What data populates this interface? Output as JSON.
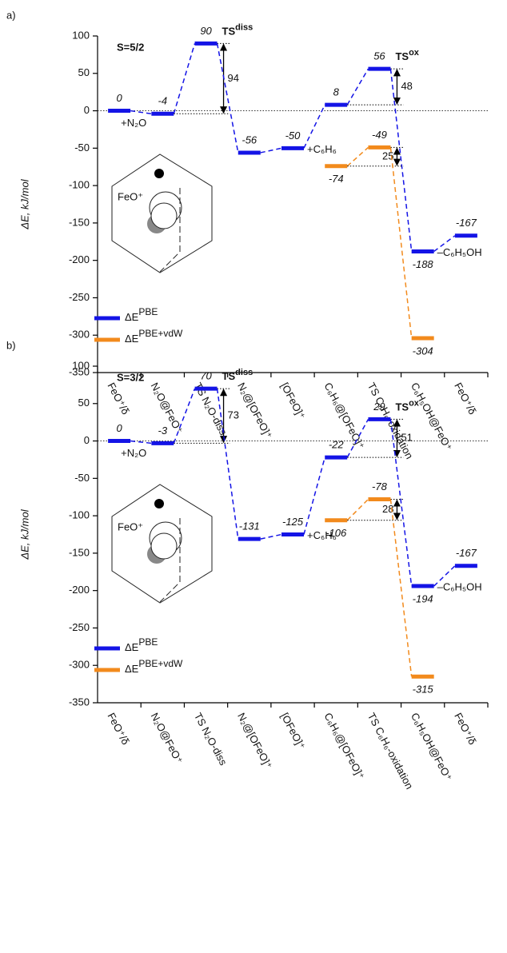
{
  "chart_data": [
    {
      "type": "level",
      "panel": "a)",
      "spin": "S=5/2",
      "ylabel": "ΔE, kJ/mol",
      "inset_label": "FeO⁺",
      "categories": [
        "FeO⁺/δ",
        "N₂O@FeO⁺",
        "TS N₂O-diss",
        "N₂@[OFeO]⁺",
        "[OFeO]⁺",
        "C₆H₆@[OFeO]⁺",
        "TS C₆H₆-oxidation",
        "C₆H₅OH@FeO⁺",
        "FeO⁺/δ"
      ],
      "ylim": [
        -350,
        100
      ],
      "yticks": [
        -350,
        -300,
        -250,
        -200,
        -150,
        -100,
        -50,
        0,
        50,
        100
      ],
      "legend": "lower left",
      "notes": [
        "+N₂O",
        null,
        null,
        null,
        "+C₆H₆",
        null,
        null,
        "–C₆H₅OH",
        null
      ],
      "ts_labels": [
        null,
        null,
        {
          "text": "TS",
          "sup": "diss"
        },
        null,
        null,
        null,
        {
          "text": "TS",
          "sup": "ox"
        },
        null,
        null
      ],
      "series": [
        {
          "name": "ΔE",
          "sup": "PBE",
          "color": "#1414e6",
          "values": [
            0,
            -4,
            90,
            -56,
            -50,
            8,
            56,
            -188,
            -167
          ],
          "barriers": [
            null,
            null,
            94,
            null,
            null,
            null,
            48,
            null,
            null
          ]
        },
        {
          "name": "ΔE",
          "sup": "PBE+vdW",
          "color": "#f28a1c",
          "values": [
            null,
            null,
            null,
            null,
            null,
            -74,
            -49,
            -304,
            null
          ],
          "barriers": [
            null,
            null,
            null,
            null,
            null,
            null,
            25,
            null,
            null
          ]
        }
      ]
    },
    {
      "type": "level",
      "panel": "b)",
      "spin": "S=3/2",
      "ylabel": "ΔE, kJ/mol",
      "inset_label": "FeO⁺",
      "categories": [
        "FeO⁺/δ",
        "N₂O@FeO⁺",
        "TS N₂O-diss",
        "N₂@[OFeO]⁺",
        "[OFeO]⁺",
        "C₆H₆@[OFeO]⁺",
        "TS C₆H₆-oxidation",
        "C₆H₅OH@FeO⁺",
        "FeO⁺/δ"
      ],
      "ylim": [
        -350,
        100
      ],
      "yticks": [
        -350,
        -300,
        -250,
        -200,
        -150,
        -100,
        -50,
        0,
        50,
        100
      ],
      "legend": "lower left",
      "notes": [
        "+N₂O",
        null,
        null,
        null,
        "+C₆H₆",
        null,
        null,
        "–C₆H₅OH",
        null
      ],
      "ts_labels": [
        null,
        null,
        {
          "text": "TS",
          "sup": "diss"
        },
        null,
        null,
        null,
        {
          "text": "TS",
          "sup": "ox"
        },
        null,
        null
      ],
      "series": [
        {
          "name": "ΔE",
          "sup": "PBE",
          "color": "#1414e6",
          "values": [
            0,
            -3,
            70,
            -131,
            -125,
            -22,
            29,
            -194,
            -167
          ],
          "barriers": [
            null,
            null,
            73,
            null,
            null,
            null,
            51,
            null,
            null
          ]
        },
        {
          "name": "ΔE",
          "sup": "PBE+vdW",
          "color": "#f28a1c",
          "values": [
            null,
            null,
            null,
            null,
            null,
            -106,
            -78,
            -315,
            null
          ],
          "barriers": [
            null,
            null,
            null,
            null,
            null,
            null,
            28,
            null,
            null
          ]
        }
      ]
    }
  ]
}
